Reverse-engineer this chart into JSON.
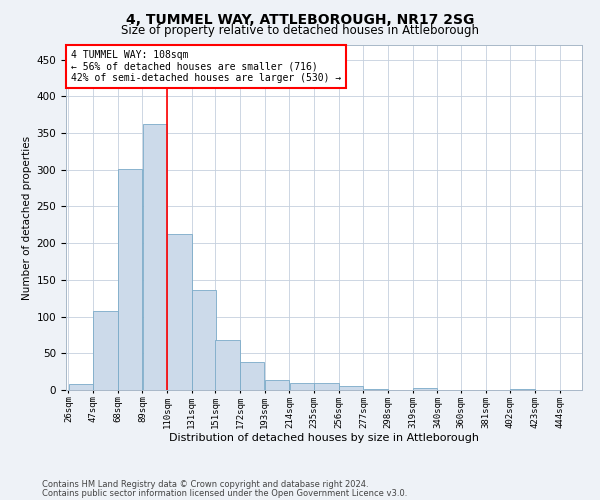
{
  "title1": "4, TUMMEL WAY, ATTLEBOROUGH, NR17 2SG",
  "title2": "Size of property relative to detached houses in Attleborough",
  "xlabel": "Distribution of detached houses by size in Attleborough",
  "ylabel": "Number of detached properties",
  "bar_color": "#ccdaea",
  "bar_edgecolor": "#7aaac8",
  "annotation_label": "4 TUMMEL WAY: 108sqm",
  "annotation_line1": "← 56% of detached houses are smaller (716)",
  "annotation_line2": "42% of semi-detached houses are larger (530) →",
  "bin_edges": [
    26,
    47,
    68,
    89,
    110,
    131,
    151,
    172,
    193,
    214,
    235,
    256,
    277,
    298,
    319,
    340,
    360,
    381,
    402,
    423,
    444
  ],
  "bar_heights": [
    8,
    108,
    301,
    362,
    212,
    136,
    68,
    38,
    13,
    10,
    9,
    6,
    2,
    0,
    3,
    0,
    0,
    0,
    2,
    0
  ],
  "ylim": [
    0,
    470
  ],
  "yticks": [
    0,
    50,
    100,
    150,
    200,
    250,
    300,
    350,
    400,
    450
  ],
  "footer1": "Contains HM Land Registry data © Crown copyright and database right 2024.",
  "footer2": "Contains public sector information licensed under the Open Government Licence v3.0.",
  "bg_color": "#eef2f7",
  "plot_bg_color": "#ffffff",
  "grid_color": "#c5d0de",
  "title1_fontsize": 10,
  "title2_fontsize": 8.5,
  "xlabel_fontsize": 8,
  "ylabel_fontsize": 7.5,
  "ytick_fontsize": 7.5,
  "xtick_fontsize": 6.5,
  "annotation_fontsize": 7,
  "footer_fontsize": 6
}
